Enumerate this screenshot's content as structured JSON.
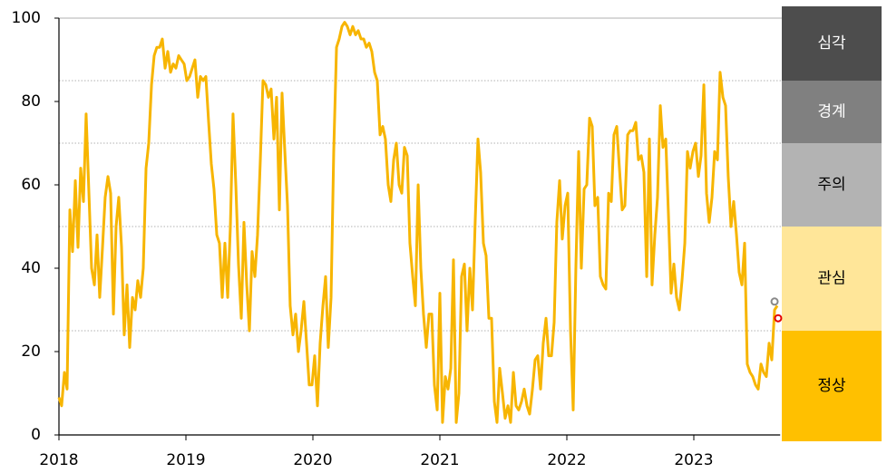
{
  "chart_data": {
    "type": "line",
    "color": "#f7b500",
    "xlim": [
      2018,
      2023.68
    ],
    "xticks": [
      2018,
      2019,
      2020,
      2021,
      2022,
      2023
    ],
    "ylim": [
      0,
      100
    ],
    "yticks": [
      0,
      20,
      40,
      60,
      80,
      100
    ],
    "x": [
      2018,
      2018.021,
      2018.043,
      2018.064,
      2018.086,
      2018.107,
      2018.129,
      2018.15,
      2018.171,
      2018.193,
      2018.214,
      2018.236,
      2018.257,
      2018.279,
      2018.3,
      2018.321,
      2018.343,
      2018.364,
      2018.386,
      2018.407,
      2018.429,
      2018.45,
      2018.471,
      2018.493,
      2018.514,
      2018.536,
      2018.557,
      2018.579,
      2018.6,
      2018.621,
      2018.643,
      2018.664,
      2018.686,
      2018.707,
      2018.729,
      2018.75,
      2018.771,
      2018.793,
      2018.814,
      2018.836,
      2018.857,
      2018.879,
      2018.9,
      2018.921,
      2018.943,
      2018.964,
      2018.986,
      2019.007,
      2019.029,
      2019.05,
      2019.071,
      2019.093,
      2019.114,
      2019.136,
      2019.157,
      2019.179,
      2019.2,
      2019.221,
      2019.243,
      2019.264,
      2019.286,
      2019.307,
      2019.329,
      2019.35,
      2019.371,
      2019.393,
      2019.414,
      2019.436,
      2019.457,
      2019.479,
      2019.5,
      2019.521,
      2019.543,
      2019.564,
      2019.586,
      2019.607,
      2019.629,
      2019.65,
      2019.671,
      2019.693,
      2019.714,
      2019.736,
      2019.757,
      2019.779,
      2019.8,
      2019.821,
      2019.843,
      2019.864,
      2019.886,
      2019.907,
      2019.929,
      2019.95,
      2019.971,
      2019.993,
      2020.014,
      2020.036,
      2020.057,
      2020.079,
      2020.1,
      2020.121,
      2020.143,
      2020.164,
      2020.186,
      2020.207,
      2020.229,
      2020.25,
      2020.271,
      2020.293,
      2020.314,
      2020.336,
      2020.357,
      2020.379,
      2020.4,
      2020.421,
      2020.443,
      2020.464,
      2020.486,
      2020.507,
      2020.529,
      2020.55,
      2020.571,
      2020.593,
      2020.614,
      2020.636,
      2020.657,
      2020.679,
      2020.7,
      2020.721,
      2020.743,
      2020.764,
      2020.786,
      2020.807,
      2020.829,
      2020.85,
      2020.871,
      2020.893,
      2020.914,
      2020.936,
      2020.957,
      2020.979,
      2021,
      2021.021,
      2021.043,
      2021.064,
      2021.086,
      2021.107,
      2021.129,
      2021.15,
      2021.171,
      2021.193,
      2021.214,
      2021.236,
      2021.257,
      2021.279,
      2021.3,
      2021.321,
      2021.343,
      2021.364,
      2021.386,
      2021.407,
      2021.429,
      2021.45,
      2021.471,
      2021.493,
      2021.514,
      2021.536,
      2021.557,
      2021.579,
      2021.6,
      2021.621,
      2021.643,
      2021.664,
      2021.686,
      2021.707,
      2021.729,
      2021.75,
      2021.771,
      2021.793,
      2021.814,
      2021.836,
      2021.857,
      2021.879,
      2021.9,
      2021.921,
      2021.943,
      2021.964,
      2021.986,
      2022.007,
      2022.029,
      2022.05,
      2022.071,
      2022.093,
      2022.114,
      2022.136,
      2022.157,
      2022.179,
      2022.2,
      2022.221,
      2022.243,
      2022.264,
      2022.286,
      2022.307,
      2022.329,
      2022.35,
      2022.371,
      2022.393,
      2022.414,
      2022.436,
      2022.457,
      2022.479,
      2022.5,
      2022.521,
      2022.543,
      2022.564,
      2022.586,
      2022.607,
      2022.629,
      2022.65,
      2022.671,
      2022.693,
      2022.714,
      2022.736,
      2022.757,
      2022.779,
      2022.8,
      2022.821,
      2022.843,
      2022.864,
      2022.886,
      2022.907,
      2022.929,
      2022.95,
      2022.971,
      2022.993,
      2023.014,
      2023.036,
      2023.057,
      2023.079,
      2023.1,
      2023.121,
      2023.143,
      2023.164,
      2023.186,
      2023.207,
      2023.229,
      2023.25,
      2023.271,
      2023.293,
      2023.314,
      2023.336,
      2023.357,
      2023.379,
      2023.4,
      2023.421,
      2023.443,
      2023.464,
      2023.486,
      2023.507,
      2023.529,
      2023.55,
      2023.571,
      2023.593,
      2023.614,
      2023.636,
      2023.657
    ],
    "values": [
      9,
      7,
      15,
      11,
      54,
      44,
      61,
      45,
      64,
      56,
      77,
      58,
      40,
      36,
      48,
      33,
      45,
      57,
      62,
      58,
      29,
      50,
      57,
      45,
      24,
      36,
      21,
      33,
      30,
      37,
      33,
      40,
      64,
      70,
      84,
      91,
      93,
      93,
      95,
      88,
      92,
      87,
      89,
      88,
      91,
      90,
      89,
      85,
      86,
      88,
      90,
      81,
      86,
      85,
      86,
      75,
      65,
      59,
      48,
      46,
      33,
      46,
      33,
      50,
      77,
      60,
      41,
      28,
      51,
      36,
      25,
      44,
      38,
      48,
      66,
      85,
      84,
      81,
      83,
      71,
      81,
      54,
      82,
      68,
      55,
      31,
      24,
      29,
      20,
      25,
      32,
      22,
      12,
      12,
      19,
      7,
      22,
      31,
      38,
      21,
      33,
      68,
      93,
      95,
      98,
      99,
      98,
      96,
      98,
      96,
      97,
      95,
      95,
      93,
      94,
      92,
      87,
      85,
      72,
      74,
      71,
      60,
      56,
      66,
      70,
      60,
      58,
      69,
      67,
      46,
      38,
      31,
      60,
      40,
      29,
      21,
      29,
      29,
      12,
      6,
      34,
      3,
      14,
      11,
      16,
      42,
      3,
      10,
      38,
      41,
      25,
      40,
      30,
      52,
      71,
      63,
      46,
      43,
      28,
      28,
      8,
      3,
      16,
      10,
      4,
      7,
      3,
      15,
      7,
      6,
      8,
      11,
      7,
      5,
      11,
      18,
      19,
      11,
      22,
      28,
      19,
      19,
      27,
      51,
      61,
      47,
      55,
      58,
      25,
      6,
      40,
      68,
      40,
      59,
      60,
      76,
      74,
      55,
      57,
      38,
      36,
      35,
      58,
      56,
      72,
      74,
      64,
      54,
      55,
      72,
      73,
      73,
      75,
      66,
      67,
      63,
      38,
      71,
      36,
      48,
      57,
      79,
      69,
      71,
      53,
      34,
      41,
      33,
      30,
      37,
      46,
      68,
      64,
      68,
      70,
      62,
      67,
      84,
      58,
      51,
      57,
      68,
      66,
      87,
      81,
      79,
      62,
      50,
      56,
      48,
      39,
      36,
      46,
      17,
      15,
      14,
      12,
      11,
      17,
      15,
      14,
      22,
      18,
      30,
      31
    ],
    "markers": [
      {
        "x": 2023.636,
        "y": 32,
        "color": "#888888"
      },
      {
        "x": 2023.664,
        "y": 28,
        "color": "#e60000"
      }
    ],
    "bands": [
      {
        "label": "심각",
        "from": 85,
        "to": 100,
        "color": "#4d4d4d",
        "text_color": "#ffffff"
      },
      {
        "label": "경계",
        "from": 70,
        "to": 85,
        "color": "#808080",
        "text_color": "#ffffff"
      },
      {
        "label": "주의",
        "from": 50,
        "to": 70,
        "color": "#b3b3b3",
        "text_color": "#000000"
      },
      {
        "label": "관심",
        "from": 25,
        "to": 50,
        "color": "#ffe699",
        "text_color": "#000000"
      },
      {
        "label": "정상",
        "from": 0,
        "to": 25,
        "color": "#ffc000",
        "text_color": "#000000"
      }
    ]
  }
}
